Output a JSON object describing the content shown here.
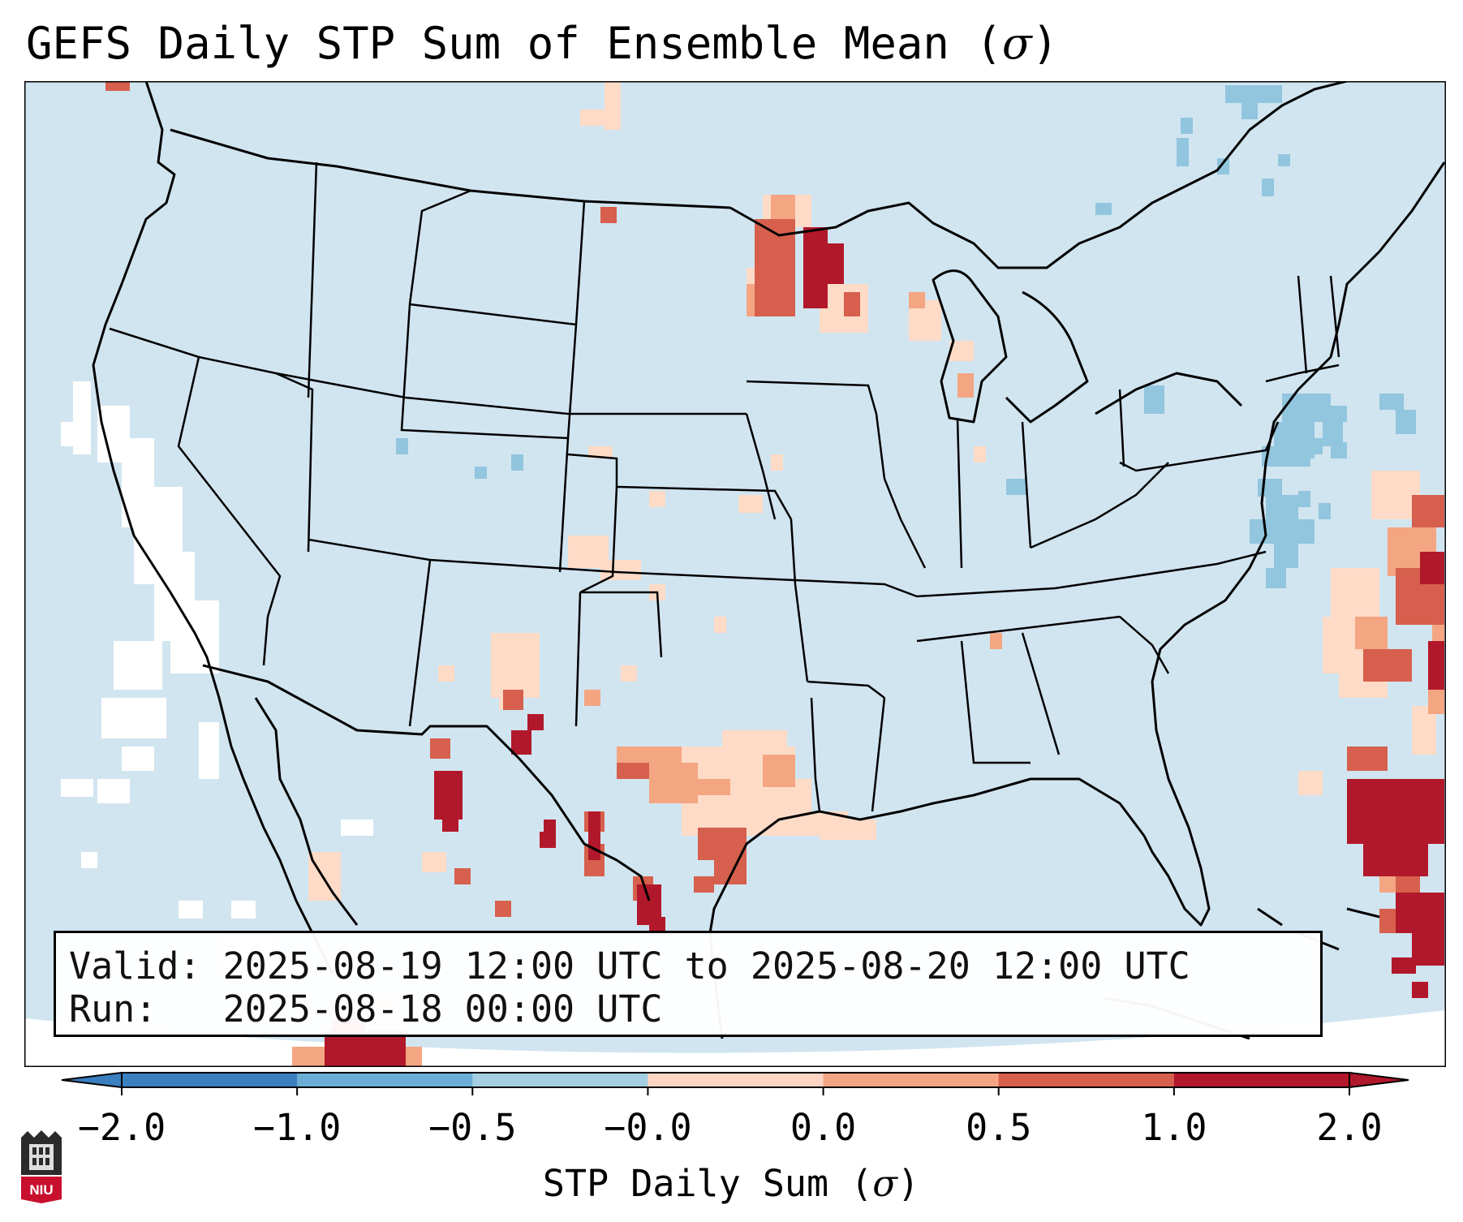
{
  "title": {
    "text": "GEFS Daily STP Sum of Ensemble Mean (",
    "symbol": "σ",
    "close": ")"
  },
  "info": {
    "valid_label": "Valid:",
    "valid_value": "2025-08-19 12:00 UTC to 2025-08-20 12:00 UTC",
    "run_label": "Run:",
    "run_value": "2025-08-18 00:00 UTC"
  },
  "colorbar": {
    "ticks": [
      "−2.0",
      "−1.0",
      "−0.5",
      "−0.0",
      "0.0",
      "0.5",
      "1.0",
      "2.0"
    ],
    "label_text": "STP Daily Sum (",
    "label_symbol": "σ",
    "label_close": ")",
    "colors": [
      "#3a7fbf",
      "#6aaed6",
      "#a6cee3",
      "#f7f7f7",
      "#fcd5c3",
      "#f4a582",
      "#d6604d",
      "#b2182b"
    ]
  },
  "logo": {
    "text": "NIU"
  },
  "colors": {
    "background": "#d1e5f0",
    "outside_domain": "#ffffff",
    "border": "#000000"
  }
}
